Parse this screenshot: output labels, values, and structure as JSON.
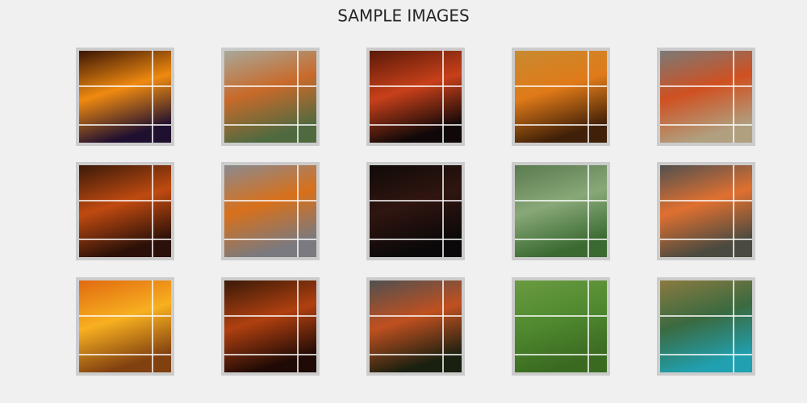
{
  "figure": {
    "title": "SAMPLE IMAGES"
  }
}
